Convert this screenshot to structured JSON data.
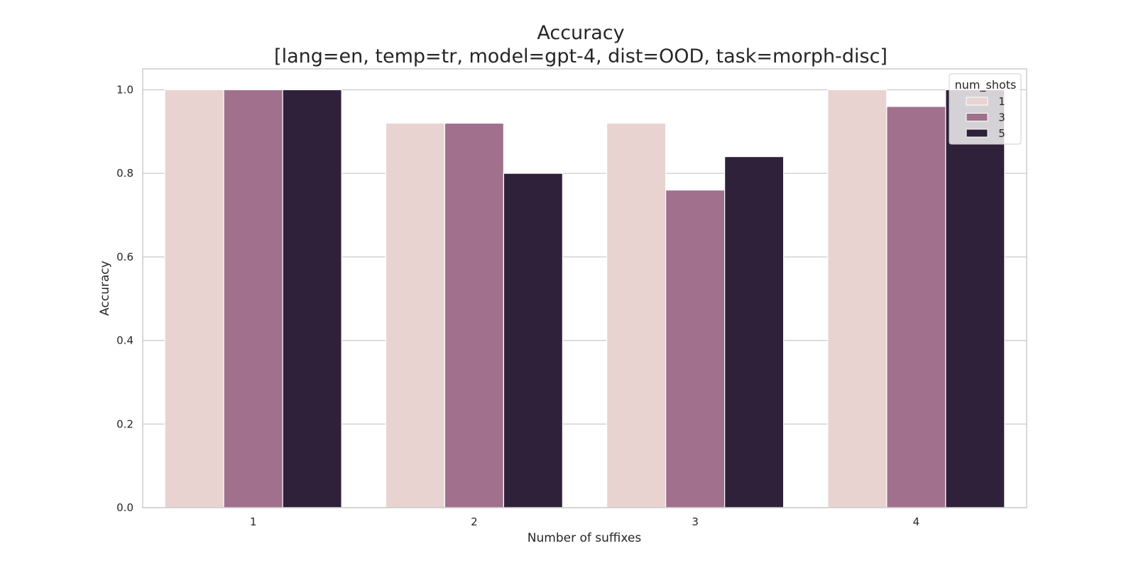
{
  "chart_data": {
    "type": "bar",
    "title_lines": [
      "Accuracy",
      "[lang=en, temp=tr, model=gpt-4, dist=OOD, task=morph-disc]"
    ],
    "xlabel": "Number of suffixes",
    "ylabel": "Accuracy",
    "categories": [
      "1",
      "2",
      "3",
      "4"
    ],
    "yticks": [
      "0.0",
      "0.2",
      "0.4",
      "0.6",
      "0.8",
      "1.0"
    ],
    "ylim": [
      0,
      1.05
    ],
    "grid": "y",
    "legend": {
      "title": "num_shots",
      "position": "top-right"
    },
    "series": [
      {
        "name": "1",
        "color": "#e8d3d0",
        "values": [
          1.0,
          0.92,
          0.92,
          1.0
        ]
      },
      {
        "name": "3",
        "color": "#a0708d",
        "values": [
          1.0,
          0.92,
          0.76,
          0.96
        ]
      },
      {
        "name": "5",
        "color": "#2e2139",
        "values": [
          1.0,
          0.8,
          0.84,
          1.0
        ]
      }
    ]
  }
}
